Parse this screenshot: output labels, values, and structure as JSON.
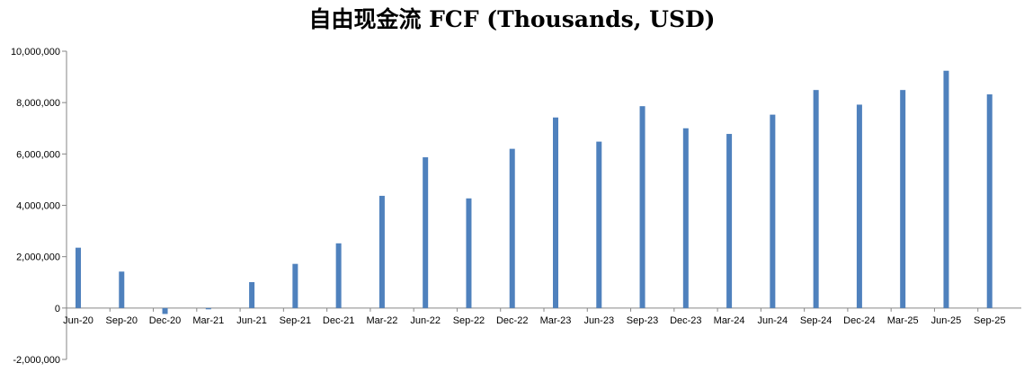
{
  "chart_data": {
    "type": "bar",
    "title": "自由现金流 FCF (Thousands, USD)",
    "xlabel": "",
    "ylabel": "",
    "ylim": [
      -2000000,
      10000000
    ],
    "yticks": [
      -2000000,
      0,
      2000000,
      4000000,
      6000000,
      8000000,
      10000000
    ],
    "ytick_labels": [
      "-2,000,000",
      "0",
      "2,000,000",
      "4,000,000",
      "6,000,000",
      "8,000,000",
      "10,000,000"
    ],
    "grid": false,
    "legend": "none",
    "bar_color": "#4f81bd",
    "categories": [
      "Jun-20",
      "Sep-20",
      "Dec-20",
      "Mar-21",
      "Jun-21",
      "Sep-21",
      "Dec-21",
      "Mar-22",
      "Jun-22",
      "Sep-22",
      "Dec-22",
      "Mar-23",
      "Jun-23",
      "Sep-23",
      "Dec-23",
      "Mar-24",
      "Jun-24",
      "Sep-24",
      "Dec-24",
      "Mar-25",
      "Jun-25",
      "Sep-25"
    ],
    "values": [
      2350000,
      1420000,
      -230000,
      -50000,
      1010000,
      1720000,
      2520000,
      4370000,
      5870000,
      4270000,
      6200000,
      7420000,
      6480000,
      7860000,
      7000000,
      6780000,
      7530000,
      8490000,
      7920000,
      8490000,
      9240000,
      8320000
    ]
  }
}
